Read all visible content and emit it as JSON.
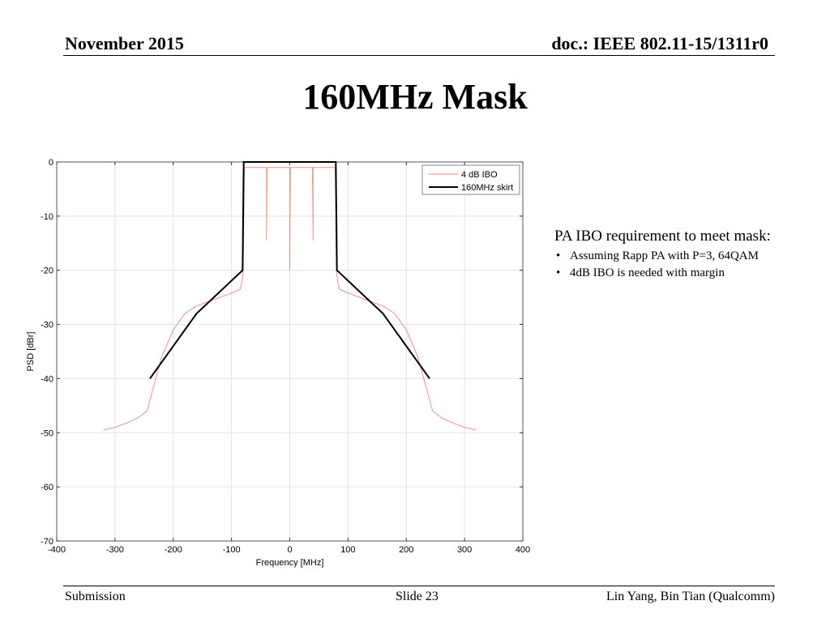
{
  "header": {
    "date": "November 2015",
    "doc": "doc.: IEEE 802.11-15/1311r0"
  },
  "slide": {
    "title": "160MHz Mask"
  },
  "notes": {
    "heading": "PA IBO requirement to meet mask:",
    "bullets": [
      "Assuming Rapp PA with P=3, 64QAM",
      "4dB IBO is needed with margin"
    ]
  },
  "footer": {
    "left": "Submission",
    "center": "Slide 23",
    "right": "Lin Yang, Bin Tian (Qualcomm)"
  },
  "chart_data": {
    "type": "line",
    "title": "",
    "xlabel": "Frequency [MHz]",
    "ylabel": "PSD [dBr]",
    "xlim": [
      -400,
      400
    ],
    "ylim": [
      -70,
      0
    ],
    "xticks": [
      -400,
      -300,
      -200,
      -100,
      0,
      100,
      200,
      300,
      400
    ],
    "yticks": [
      0,
      -10,
      -20,
      -30,
      -40,
      -50,
      -60,
      -70
    ],
    "grid": true,
    "legend": "top-right",
    "colors": {
      "ibo": "#f08070",
      "skirt": "#000000"
    },
    "series": [
      {
        "name": "4 dB IBO",
        "x": [
          -320,
          -300,
          -280,
          -260,
          -245,
          -235,
          -220,
          -200,
          -180,
          -160,
          -140,
          -120,
          -100,
          -85,
          -82,
          -80,
          -78,
          -40,
          -40,
          -39,
          0,
          0,
          1,
          39,
          40,
          40,
          78,
          80,
          82,
          85,
          100,
          120,
          140,
          160,
          180,
          200,
          220,
          235,
          245,
          260,
          280,
          300,
          320
        ],
        "y": [
          -49.5,
          -49,
          -48.2,
          -47.2,
          -46,
          -42,
          -36,
          -31,
          -28,
          -26.6,
          -25.8,
          -25,
          -24.2,
          -23.5,
          -22,
          -20,
          -1,
          -1,
          -14.5,
          -1,
          -1,
          -20,
          -1,
          -1,
          -14.5,
          -1,
          -1,
          -20,
          -22,
          -23.5,
          -24.2,
          -25,
          -25.8,
          -26.6,
          -28,
          -31,
          -36,
          -42,
          -46,
          -47.2,
          -48.2,
          -49,
          -49.5
        ]
      },
      {
        "name": "160MHz skirt",
        "x": [
          -240,
          -160,
          -81,
          -79,
          79,
          81,
          160,
          240
        ],
        "y": [
          -40,
          -28,
          -20,
          0,
          0,
          -20,
          -28,
          -40
        ]
      }
    ]
  }
}
